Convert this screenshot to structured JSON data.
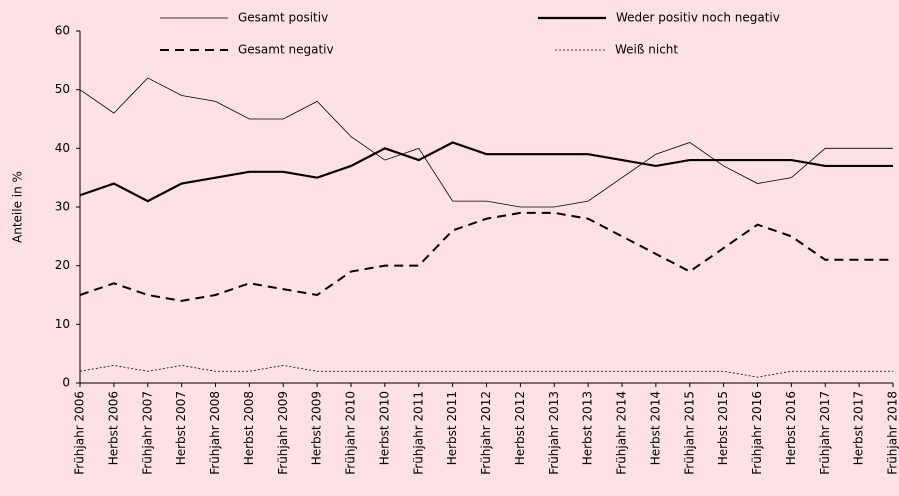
{
  "chart_data": {
    "type": "line",
    "y_label": "Anteile in %",
    "categories": [
      "Frühjahr 2006",
      "Herbst 2006",
      "Frühjahr 2007",
      "Herbst 2007",
      "Frühjahr 2008",
      "Herbst 2008",
      "Frühjahr 2009",
      "Herbst 2009",
      "Frühjahr 2010",
      "Herbst 2010",
      "Frühjahr 2011",
      "Herbst 2011",
      "Frühjahr 2012",
      "Herbst 2012",
      "Frühjahr 2013",
      "Herbst 2013",
      "Frühjahr 2014",
      "Herbst 2014",
      "Frühjahr 2015",
      "Herbst 2015",
      "Frühjahr 2016",
      "Herbst 2016",
      "Frühjahr 2017",
      "Herbst 2017",
      "Frühjahr 2018"
    ],
    "series": [
      {
        "name": "Gesamt positiv",
        "color": "#000000",
        "linestyle": "solid",
        "linewidth": 0.8,
        "values": [
          50,
          46,
          52,
          49,
          48,
          45,
          45,
          48,
          42,
          38,
          40,
          31,
          31,
          30,
          30,
          31,
          35,
          39,
          41,
          37,
          34,
          35,
          40,
          40,
          40
        ]
      },
      {
        "name": "Weder positiv noch negativ",
        "color": "#000000",
        "linestyle": "solid",
        "linewidth": 2.2,
        "values": [
          32,
          34,
          31,
          34,
          35,
          36,
          36,
          35,
          37,
          40,
          38,
          41,
          39,
          39,
          39,
          39,
          38,
          37,
          38,
          38,
          38,
          38,
          37,
          37,
          37
        ]
      },
      {
        "name": "Gesamt negativ",
        "color": "#000000",
        "linestyle": "dashed",
        "linewidth": 2,
        "values": [
          15,
          17,
          15,
          14,
          15,
          17,
          16,
          15,
          19,
          20,
          20,
          26,
          28,
          29,
          29,
          28,
          25,
          22,
          19,
          23,
          27,
          25,
          21,
          21,
          21
        ]
      },
      {
        "name": "Weiß nicht",
        "color": "#000000",
        "linestyle": "dotted",
        "linewidth": 0.8,
        "values": [
          2,
          3,
          2,
          3,
          2,
          2,
          3,
          2,
          2,
          2,
          2,
          2,
          2,
          2,
          2,
          2,
          2,
          2,
          2,
          2,
          1,
          2,
          2,
          2,
          2
        ]
      }
    ],
    "ylim": [
      0,
      60
    ],
    "yticks": [
      0,
      10,
      20,
      30,
      40,
      50,
      60
    ],
    "grid": false,
    "legend": "top"
  }
}
